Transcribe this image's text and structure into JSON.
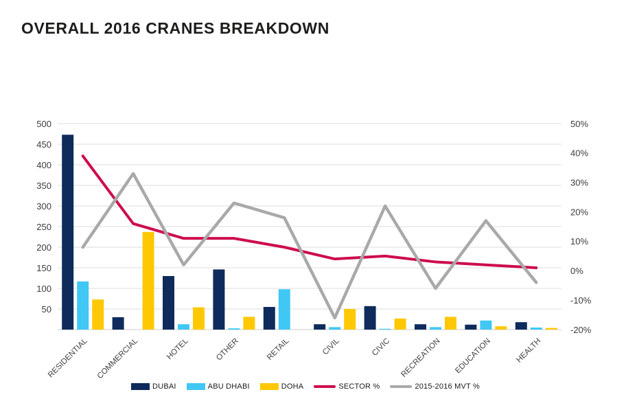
{
  "page": {
    "background": "#ffffff"
  },
  "title": "OVERALL 2016 CRANES BREAKDOWN",
  "chart_data": {
    "type": "bar",
    "subtype": "combo-bar-line-dual-axis",
    "title": "OVERALL 2016 CRANES BREAKDOWN",
    "categories": [
      "RESIDENTIAL",
      "COMMERCIAL",
      "HOTEL",
      "OTHER",
      "RETAIL",
      "CIVIL",
      "CIVIC",
      "RECREATION",
      "EDUCATION",
      "HEALTH"
    ],
    "series": [
      {
        "name": "DUBAI",
        "type": "bar",
        "axis": "left",
        "color": "#0e2b5c",
        "values": [
          473,
          30,
          130,
          146,
          55,
          13,
          57,
          13,
          12,
          18
        ]
      },
      {
        "name": "ABU DHABI",
        "type": "bar",
        "axis": "left",
        "color": "#41c7f4",
        "values": [
          117,
          0,
          13,
          3,
          98,
          6,
          2,
          6,
          22,
          5
        ]
      },
      {
        "name": "DOHA",
        "type": "bar",
        "axis": "left",
        "color": "#ffc805",
        "values": [
          73,
          237,
          54,
          31,
          0,
          50,
          27,
          31,
          8,
          4
        ]
      },
      {
        "name": "SECTOR %",
        "type": "line",
        "axis": "right",
        "color": "#ce0c4d",
        "values": [
          39,
          16,
          11,
          11,
          8,
          4,
          5,
          3,
          2,
          1
        ]
      },
      {
        "name": "2015-2016 MVT %",
        "type": "line",
        "axis": "right",
        "color": "#a9a9a9",
        "values": [
          8,
          33,
          2,
          23,
          18,
          -16,
          22,
          -6,
          17,
          -4
        ]
      }
    ],
    "left_axis": {
      "min": 0,
      "max": 500,
      "step": 50,
      "ticks": [
        "500",
        "450",
        "400",
        "350",
        "300",
        "250",
        "200",
        "150",
        "100",
        "50"
      ]
    },
    "right_axis": {
      "min": -20,
      "max": 50,
      "step": 10,
      "ticks": [
        "50%",
        "40%",
        "30%",
        "20%",
        "10%",
        "0%",
        "-10%",
        "-20%"
      ]
    },
    "grid": "horizontal",
    "legend_position": "bottom",
    "legend": [
      "DUBAI",
      "ABU DHABI",
      "DOHA",
      "SECTOR %",
      "2015-2016 MVT %"
    ]
  },
  "colors": {
    "dubai": "#0e2b5c",
    "abu_dhabi": "#41c7f4",
    "doha": "#ffc805",
    "sector_line": "#ce0c4d",
    "mvt_line": "#a9a9a9"
  }
}
